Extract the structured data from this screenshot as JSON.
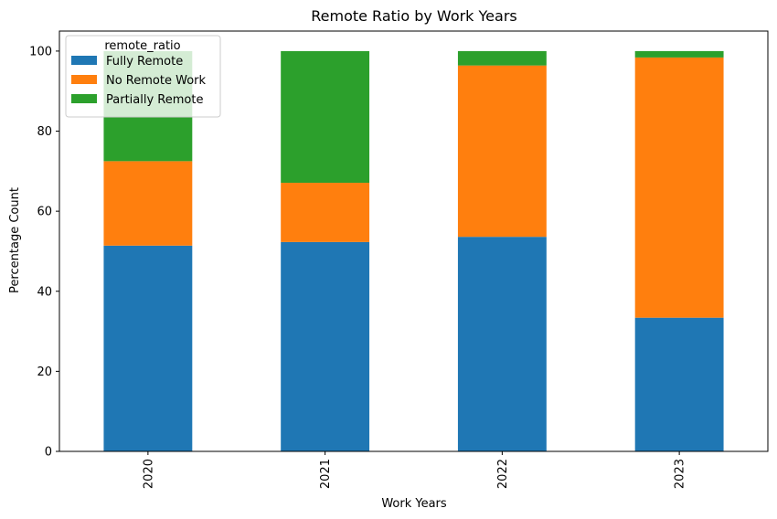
{
  "chart_data": {
    "type": "bar",
    "stacked": true,
    "title": "Remote Ratio by Work Years",
    "xlabel": "Work Years",
    "ylabel": "Percentage Count",
    "categories": [
      "2020",
      "2021",
      "2022",
      "2023"
    ],
    "ylim": [
      0,
      105
    ],
    "yticks": [
      0,
      20,
      40,
      60,
      80,
      100
    ],
    "series": [
      {
        "name": "Fully Remote",
        "color": "#1f77b4",
        "values": [
          51.4,
          52.3,
          53.6,
          33.4
        ]
      },
      {
        "name": "No Remote Work",
        "color": "#ff7f0e",
        "values": [
          21.1,
          14.8,
          42.8,
          65.0
        ]
      },
      {
        "name": "Partially Remote",
        "color": "#2ca02c",
        "values": [
          27.5,
          32.9,
          3.6,
          1.6
        ]
      }
    ],
    "legend": {
      "title": "remote_ratio",
      "position": "top-left"
    },
    "grid": false
  }
}
